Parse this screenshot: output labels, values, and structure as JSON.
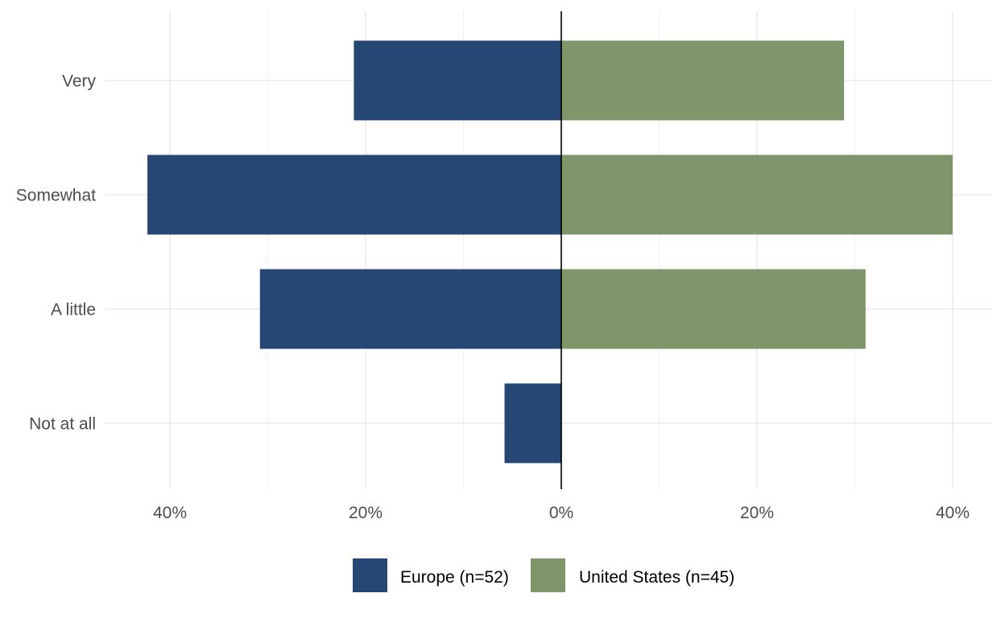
{
  "chart_data": {
    "type": "bar",
    "orientation": "horizontal",
    "layout": "diverging",
    "categories": [
      "Very",
      "Somewhat",
      "A little",
      "Not at all"
    ],
    "series": [
      {
        "name": "Europe (n=52)",
        "color": "#264673",
        "direction": "left",
        "values": [
          21.2,
          42.3,
          30.8,
          5.8
        ]
      },
      {
        "name": "United States (n=45)",
        "color": "#7f956a",
        "direction": "right",
        "values": [
          28.9,
          40.0,
          31.1,
          0
        ]
      }
    ],
    "x_ticks": [
      {
        "value": -40,
        "label": "40%"
      },
      {
        "value": -20,
        "label": "20%"
      },
      {
        "value": 0,
        "label": "0%"
      },
      {
        "value": 20,
        "label": "20%"
      },
      {
        "value": 40,
        "label": "40%"
      }
    ],
    "xlim": [
      -46.4,
      44.2
    ],
    "grid": true,
    "legend_position": "bottom",
    "title": "",
    "xlabel": "",
    "ylabel": ""
  }
}
